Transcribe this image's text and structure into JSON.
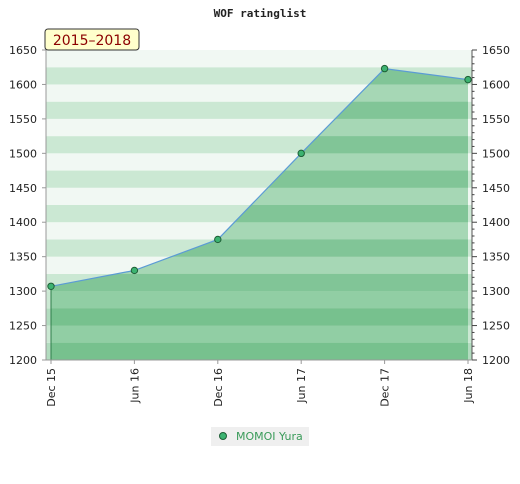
{
  "chart_data": {
    "type": "area",
    "title": "WOF ratinglist",
    "period_label": "2015–2018",
    "x": [
      "Dec 15",
      "Jun 16",
      "Dec 16",
      "Jun 17",
      "Dec 17",
      "Jun 18"
    ],
    "series": [
      {
        "name": "MOMOI Yura",
        "values": [
          1307,
          1330,
          1375,
          1500,
          1623,
          1607
        ]
      }
    ],
    "ylim": [
      1200,
      1650
    ],
    "yticks": [
      1200,
      1250,
      1300,
      1350,
      1400,
      1450,
      1500,
      1550,
      1600,
      1650
    ],
    "xlabel": "",
    "ylabel": "",
    "grid": "horizontal bands",
    "legend_position": "bottom-center",
    "colors": {
      "line": "#5b9bd5",
      "marker": "#3cb371",
      "area": "#4caf6a",
      "legend_text": "#3a9b5a",
      "label_bg": "#ffffcc"
    }
  }
}
